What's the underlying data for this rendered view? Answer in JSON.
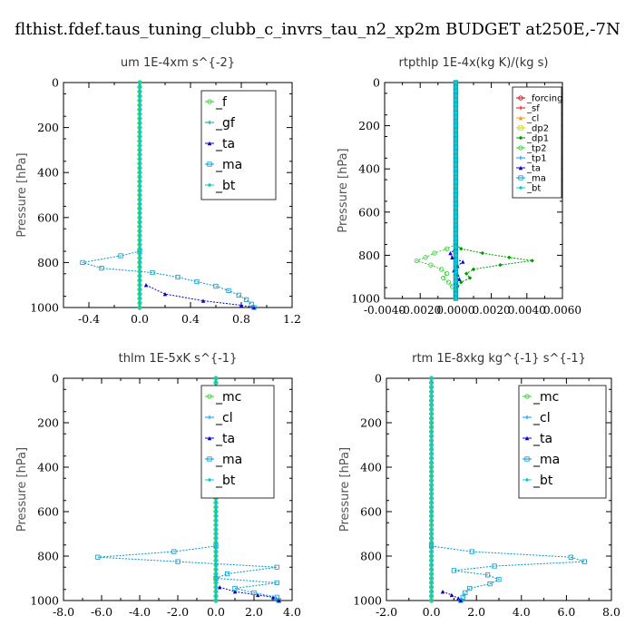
{
  "title": "flthist.fdef.taus_tuning_clubb_c_invrs_tau_n2_xp2m  BUDGET at250E,-7N",
  "chart_data": [
    {
      "type": "line",
      "title": "um   1E-4xm s^{-2}",
      "ylabel": "Pressure [hPa]",
      "xlim": [
        -0.6,
        1.2
      ],
      "ylim": [
        1000,
        0
      ],
      "xticks": [
        -0.4,
        0.0,
        0.4,
        0.8,
        1.2
      ],
      "xtick_labels": [
        "-0.4",
        "0.0",
        "0.4",
        "0.8",
        "1.2"
      ],
      "yticks": [
        0,
        200,
        400,
        600,
        800,
        1000
      ],
      "ytick_labels": [
        "0",
        "200",
        "400",
        "600",
        "800",
        "1000"
      ],
      "legend": "top-right",
      "series": [
        {
          "name": "_f",
          "color": "#33cc33",
          "pressure": [
            0,
            50,
            100,
            150,
            200,
            300,
            400,
            500,
            600,
            700,
            800,
            900,
            1000
          ],
          "values": [
            0,
            0,
            0,
            0,
            0,
            0,
            0,
            0,
            0,
            0,
            0,
            0,
            0
          ]
        },
        {
          "name": "_gf",
          "color": "#009999",
          "pressure": [
            0,
            200,
            400,
            600,
            800,
            1000
          ],
          "values": [
            0,
            0,
            0,
            0,
            0,
            0
          ]
        },
        {
          "name": "_ta",
          "color": "#0000cc",
          "pressure": [
            900,
            940,
            970,
            990,
            1000
          ],
          "values": [
            0.05,
            0.2,
            0.5,
            0.8,
            0.9
          ]
        },
        {
          "name": "_ma",
          "color": "#0099cc",
          "pressure": [
            750,
            770,
            800,
            825,
            845,
            865,
            885,
            905,
            925,
            945,
            965,
            985,
            1000
          ],
          "values": [
            0,
            -0.15,
            -0.45,
            -0.3,
            0.1,
            0.3,
            0.45,
            0.6,
            0.7,
            0.78,
            0.84,
            0.88,
            0.9
          ]
        },
        {
          "name": "_bt",
          "color": "#00cccc",
          "pressure": [
            0,
            200,
            400,
            600,
            800,
            1000
          ],
          "values": [
            0,
            0,
            0,
            0,
            0,
            0
          ]
        }
      ]
    },
    {
      "type": "line",
      "title": "rtpthlp   1E-4x(kg K)/(kg s)",
      "ylabel": "Pressure [hPa]",
      "xlim": [
        -0.004,
        0.006
      ],
      "ylim": [
        1000,
        0
      ],
      "xticks": [
        -0.004,
        -0.002,
        0.0,
        0.002,
        0.004,
        0.006
      ],
      "xtick_labels": [
        "-0.0040",
        "-0.0020",
        "0.0000",
        "0.0020",
        "0.0040",
        "0.0060"
      ],
      "yticks": [
        0,
        200,
        400,
        600,
        800,
        1000
      ],
      "ytick_labels": [
        "0",
        "200",
        "400",
        "600",
        "800",
        "1000"
      ],
      "legend": "top-right",
      "series": [
        {
          "name": "_forcing",
          "color": "#cc0000",
          "pressure": [
            0,
            200,
            400,
            600,
            800,
            1000
          ],
          "values": [
            0,
            0,
            0,
            0,
            0,
            0
          ]
        },
        {
          "name": "_sf",
          "color": "#ff0000",
          "pressure": [
            0,
            200,
            400,
            600,
            800,
            1000
          ],
          "values": [
            0,
            0,
            0,
            0,
            0,
            0
          ]
        },
        {
          "name": "_cl",
          "color": "#ff9900",
          "pressure": [
            0,
            200,
            400,
            600,
            800,
            1000
          ],
          "values": [
            0,
            0,
            0,
            0,
            0,
            0
          ]
        },
        {
          "name": "_dp2",
          "color": "#cccc00",
          "pressure": [
            0,
            200,
            400,
            600,
            800,
            1000
          ],
          "values": [
            0,
            0,
            0,
            0,
            0,
            0
          ]
        },
        {
          "name": "_dp1",
          "color": "#009900",
          "pressure": [
            750,
            770,
            790,
            810,
            825,
            845,
            865,
            885,
            905,
            925,
            945,
            965,
            985
          ],
          "values": [
            0,
            0.0003,
            0.0015,
            0.003,
            0.0043,
            0.0025,
            0.001,
            0.0006,
            0.0008,
            0.0003,
            0.0001,
            0.0,
            0.0
          ]
        },
        {
          "name": "_tp2",
          "color": "#33cc33",
          "pressure": [
            750,
            770,
            790,
            810,
            825,
            845,
            865,
            885,
            905,
            925,
            945,
            965,
            985
          ],
          "values": [
            0,
            -0.0005,
            -0.0012,
            -0.0017,
            -0.0022,
            -0.0014,
            -0.0008,
            -0.0005,
            -0.0007,
            -0.0004,
            -0.0002,
            0.0,
            0.0
          ]
        },
        {
          "name": "_tp1",
          "color": "#0099ff",
          "pressure": [
            0,
            200,
            400,
            600,
            800,
            1000
          ],
          "values": [
            0,
            0,
            0,
            0,
            0,
            0
          ]
        },
        {
          "name": "_ta",
          "color": "#0000cc",
          "pressure": [
            770,
            790,
            810,
            830,
            850,
            870,
            890,
            910,
            930
          ],
          "values": [
            0,
            -0.0003,
            -0.0002,
            0.0004,
            0.0001,
            -0.0001,
            0.0001,
            0.0002,
            0.0
          ]
        },
        {
          "name": "_ma",
          "color": "#0099cc",
          "pressure": [
            0,
            200,
            400,
            600,
            800,
            1000
          ],
          "values": [
            0,
            0,
            0,
            0,
            0,
            0
          ]
        },
        {
          "name": "_bt",
          "color": "#00cccc",
          "pressure": [
            0,
            200,
            400,
            600,
            800,
            1000
          ],
          "values": [
            0,
            0,
            0,
            0,
            0,
            0
          ]
        }
      ]
    },
    {
      "type": "line",
      "title": "thlm   1E-5xK s^{-1}",
      "ylabel": "Pressure [hPa]",
      "xlim": [
        -8.0,
        4.0
      ],
      "ylim": [
        1000,
        0
      ],
      "xticks": [
        -8.0,
        -6.0,
        -4.0,
        -2.0,
        0.0,
        2.0,
        4.0
      ],
      "xtick_labels": [
        "-8.0",
        "-6.0",
        "-4.0",
        "-2.0",
        "0.0",
        "2.0",
        "4.0"
      ],
      "yticks": [
        0,
        200,
        400,
        600,
        800,
        1000
      ],
      "ytick_labels": [
        "0",
        "200",
        "400",
        "600",
        "800",
        "1000"
      ],
      "legend": "top-right",
      "series": [
        {
          "name": "_mc",
          "color": "#33cc33",
          "pressure": [
            0,
            200,
            400,
            600,
            800,
            1000
          ],
          "values": [
            0,
            0,
            0,
            0,
            0,
            0
          ]
        },
        {
          "name": "_cl",
          "color": "#0099ff",
          "pressure": [
            0,
            200,
            400,
            600,
            800,
            1000
          ],
          "values": [
            0,
            0,
            0,
            0,
            0,
            0
          ]
        },
        {
          "name": "_ta",
          "color": "#0000cc",
          "pressure": [
            940,
            960,
            975,
            985,
            995,
            1000
          ],
          "values": [
            0.2,
            1.0,
            2.2,
            3.0,
            3.3,
            3.3
          ]
        },
        {
          "name": "_ma",
          "color": "#0099cc",
          "pressure": [
            755,
            780,
            805,
            825,
            850,
            880,
            900,
            920,
            945,
            965,
            985,
            1000
          ],
          "values": [
            0,
            -2.2,
            -6.2,
            -2.0,
            3.2,
            0.6,
            0,
            3.2,
            1.0,
            2.0,
            3.2,
            3.3
          ]
        },
        {
          "name": "_bt",
          "color": "#00cccc",
          "pressure": [
            0,
            200,
            400,
            600,
            800,
            1000
          ],
          "values": [
            0,
            0,
            0,
            0,
            0,
            0
          ]
        }
      ]
    },
    {
      "type": "line",
      "title": "rtm   1E-8xkg kg^{-1} s^{-1}",
      "ylabel": "Pressure [hPa]",
      "xlim": [
        -2.0,
        8.0
      ],
      "ylim": [
        1000,
        0
      ],
      "xticks": [
        -2.0,
        0.0,
        2.0,
        4.0,
        6.0,
        8.0
      ],
      "xtick_labels": [
        "-2.0",
        "0.0",
        "2.0",
        "4.0",
        "6.0",
        "8.0"
      ],
      "yticks": [
        0,
        200,
        400,
        600,
        800,
        1000
      ],
      "ytick_labels": [
        "0",
        "200",
        "400",
        "600",
        "800",
        "1000"
      ],
      "legend": "top-right",
      "series": [
        {
          "name": "_mc",
          "color": "#33cc33",
          "pressure": [
            0,
            200,
            400,
            600,
            800,
            1000
          ],
          "values": [
            0,
            0,
            0,
            0,
            0,
            0
          ]
        },
        {
          "name": "_cl",
          "color": "#0099ff",
          "pressure": [
            0,
            200,
            400,
            600,
            800,
            1000
          ],
          "values": [
            0,
            0,
            0,
            0,
            0,
            0
          ]
        },
        {
          "name": "_ta",
          "color": "#0000cc",
          "pressure": [
            960,
            975,
            990,
            1000
          ],
          "values": [
            0.5,
            0.9,
            1.2,
            1.3
          ]
        },
        {
          "name": "_ma",
          "color": "#0099cc",
          "pressure": [
            755,
            780,
            805,
            825,
            845,
            865,
            885,
            905,
            925,
            945,
            965,
            985,
            1000
          ],
          "values": [
            0,
            1.8,
            6.2,
            6.8,
            2.8,
            1.0,
            2.5,
            3.0,
            2.6,
            1.7,
            1.5,
            1.4,
            1.3
          ]
        },
        {
          "name": "_bt",
          "color": "#00cccc",
          "pressure": [
            0,
            200,
            400,
            600,
            800,
            1000
          ],
          "values": [
            0,
            0,
            0,
            0,
            0,
            0
          ]
        }
      ]
    }
  ]
}
